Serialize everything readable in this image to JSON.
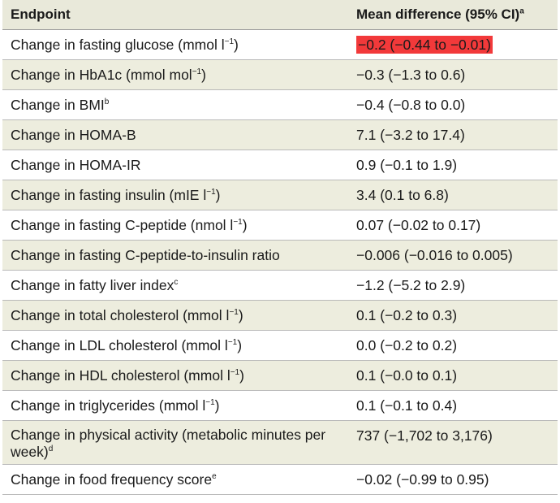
{
  "header": {
    "endpoint": "Endpoint",
    "mean_diff": "Mean difference (95% CI)",
    "mean_diff_sup": "a"
  },
  "highlight_color": "#f2393a",
  "rows": [
    {
      "pre": "Change in fasting glucose (mmol l",
      "sup": "−1",
      "post": ")",
      "value": "−0.2 (−0.44 to −0.01)"
    },
    {
      "pre": "Change in HbA1c (mmol mol",
      "sup": "−1",
      "post": ")",
      "value": "−0.3 (−1.3 to 0.6)"
    },
    {
      "pre": "Change in BMI",
      "sup": "b",
      "post": "",
      "value": "−0.4 (−0.8 to 0.0)"
    },
    {
      "pre": "Change in HOMA-B",
      "sup": "",
      "post": "",
      "value": "7.1 (−3.2 to 17.4)"
    },
    {
      "pre": "Change in HOMA-IR",
      "sup": "",
      "post": "",
      "value": "0.9 (−0.1 to 1.9)"
    },
    {
      "pre": "Change in fasting insulin (mIE l",
      "sup": "−1",
      "post": ")",
      "value": "3.4 (0.1 to 6.8)"
    },
    {
      "pre": "Change in fasting C-peptide (nmol l",
      "sup": "−1",
      "post": ")",
      "value": "0.07 (−0.02 to 0.17)"
    },
    {
      "pre": "Change in fasting C-peptide-to-insulin ratio",
      "sup": "",
      "post": "",
      "value": "−0.006 (−0.016 to 0.005)"
    },
    {
      "pre": "Change in fatty liver index",
      "sup": "c",
      "post": "",
      "value": "−1.2 (−5.2 to 2.9)"
    },
    {
      "pre": "Change in total cholesterol (mmol l",
      "sup": "−1",
      "post": ")",
      "value": "0.1 (−0.2 to 0.3)"
    },
    {
      "pre": "Change in LDL cholesterol (mmol l",
      "sup": "−1",
      "post": ")",
      "value": "0.0 (−0.2 to 0.2)"
    },
    {
      "pre": "Change in HDL cholesterol (mmol l",
      "sup": "−1",
      "post": ")",
      "value": "0.1 (−0.0 to 0.1)"
    },
    {
      "pre": "Change in triglycerides (mmol l",
      "sup": "−1",
      "post": ")",
      "value": "0.1 (−0.1 to 0.4)"
    },
    {
      "pre": "Change in physical activity (metabolic minutes per week)",
      "sup": "d",
      "post": "",
      "value": "737 (−1,702 to 3,176)"
    },
    {
      "pre": "Change in food frequency score",
      "sup": "e",
      "post": "",
      "value": "−0.02 (−0.99 to 0.95)"
    }
  ]
}
